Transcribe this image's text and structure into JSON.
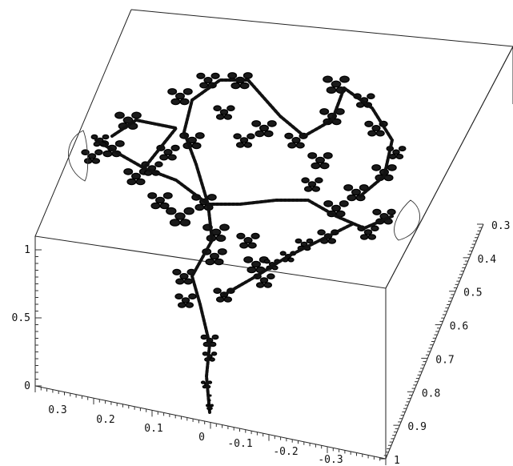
{
  "chart_data": {
    "type": "surface3d",
    "axes": {
      "x_ticks": [
        "0.3",
        "0.2",
        "0.1",
        "0",
        "-0.1",
        "-0.2",
        "-0.3"
      ],
      "y_ticks": [
        "0.3",
        "0.4",
        "0.5",
        "0.6",
        "0.7",
        "0.8",
        "0.9",
        "1"
      ],
      "z_ticks": [
        "0",
        "0.5",
        "1"
      ]
    },
    "box": true,
    "grid": false
  }
}
